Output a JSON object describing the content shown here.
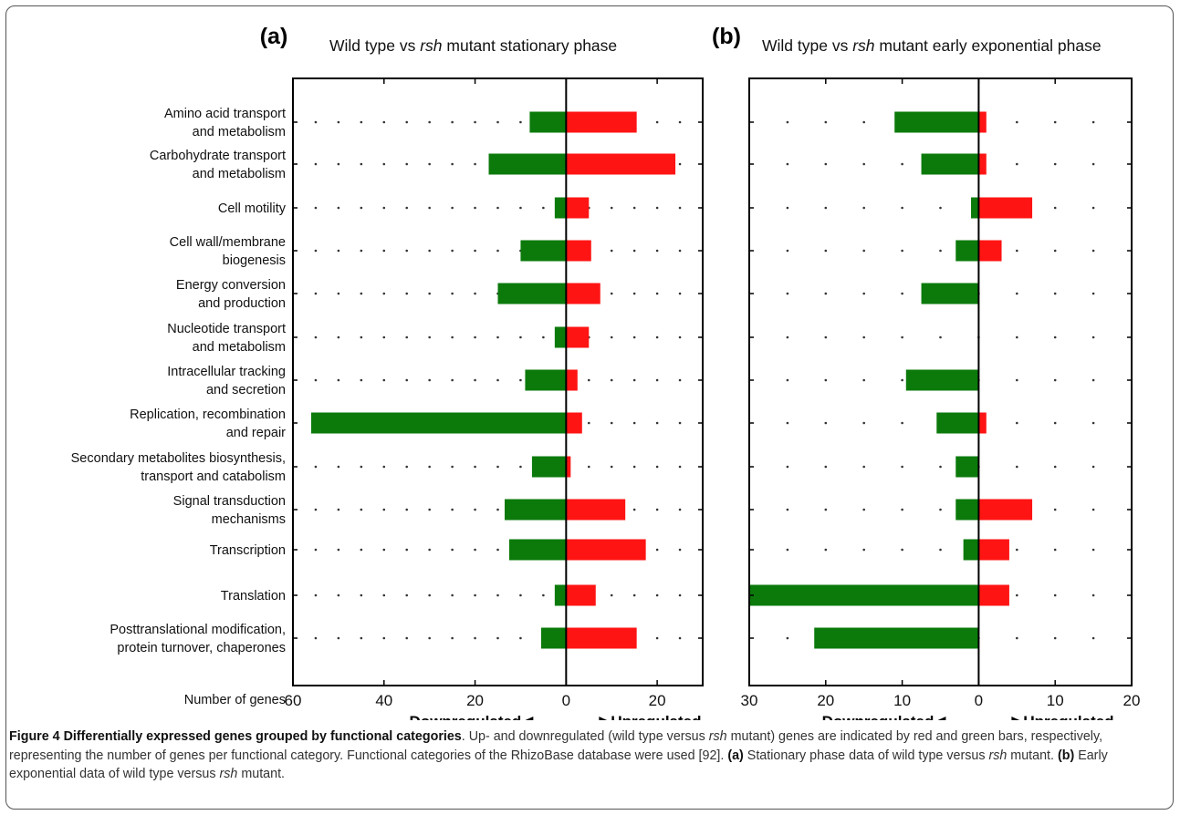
{
  "chart_data": {
    "type": "bar",
    "orientation": "horizontal-diverging",
    "categories": [
      [
        "Amino acid transport",
        "and metabolism"
      ],
      [
        "Carbohydrate transport",
        "and metabolism"
      ],
      [
        "Cell motility"
      ],
      [
        "Cell wall/membrane",
        "biogenesis"
      ],
      [
        "Energy conversion",
        "and production"
      ],
      [
        "Nucleotide transport",
        "and metabolism"
      ],
      [
        "Intracellular tracking",
        "and secretion"
      ],
      [
        "Replication, recombination",
        "and repair"
      ],
      [
        "Secondary metabolites biosynthesis,",
        "transport and catabolism"
      ],
      [
        "Signal transduction",
        "mechanisms"
      ],
      [
        "Transcription"
      ],
      [
        "Translation"
      ],
      [
        "Posttranslational modification,",
        "protein turnover, chaperones"
      ]
    ],
    "xlabel": "Number of genes",
    "down_label": "Downregulated",
    "up_label": "Upregulated",
    "colors": {
      "down": "#0b7a0b",
      "up": "#ff1414"
    },
    "panels": [
      {
        "letter": "(a)",
        "title_pre": "Wild type vs ",
        "title_italic": "rsh",
        "title_post": " mutant stationary phase",
        "xlim": [
          -60,
          30
        ],
        "ticks": [
          -60,
          -40,
          -20,
          0,
          20
        ],
        "tick_labels": [
          "60",
          "40",
          "20",
          "0",
          "20"
        ],
        "series": [
          {
            "name": "Downregulated",
            "values": [
              8,
              17,
              2.5,
              10,
              15,
              2.5,
              9,
              56,
              7.5,
              13.5,
              12.5,
              2.5,
              5.5
            ]
          },
          {
            "name": "Upregulated",
            "values": [
              15.5,
              24,
              5,
              5.5,
              7.5,
              5,
              2.5,
              3.5,
              1,
              13,
              17.5,
              6.5,
              15.5
            ]
          }
        ]
      },
      {
        "letter": "(b)",
        "title_pre": "Wild type vs ",
        "title_italic": "rsh",
        "title_post": " mutant early exponential phase",
        "xlim": [
          -30,
          20
        ],
        "ticks": [
          -30,
          -20,
          -10,
          0,
          10,
          20
        ],
        "tick_labels": [
          "30",
          "20",
          "10",
          "0",
          "10",
          "20"
        ],
        "series": [
          {
            "name": "Downregulated",
            "values": [
              11,
              7.5,
              1,
              3,
              7.5,
              0,
              9.5,
              5.5,
              3,
              3,
              2,
              30,
              21.5
            ]
          },
          {
            "name": "Upregulated",
            "values": [
              1,
              1,
              7,
              3,
              0,
              0,
              0,
              1,
              0,
              7,
              4,
              4,
              0
            ]
          }
        ]
      }
    ]
  },
  "caption": {
    "figure_label": "Figure 4 Differentially expressed genes grouped by functional categories",
    "text_1": ". Up- and downregulated (wild type versus ",
    "italic_1": "rsh",
    "text_2": " mutant) genes are indicated by red and green bars, respectively, representing the number of genes per functional category. Functional categories of the RhizoBase database were used [92]. ",
    "label_a": "(a)",
    "text_3": " Stationary phase data of wild type versus ",
    "italic_2": "rsh",
    "text_4": " mutant. ",
    "label_b": "(b)",
    "text_5": " Early exponential data of wild type versus ",
    "italic_3": "rsh",
    "text_6": " mutant."
  }
}
